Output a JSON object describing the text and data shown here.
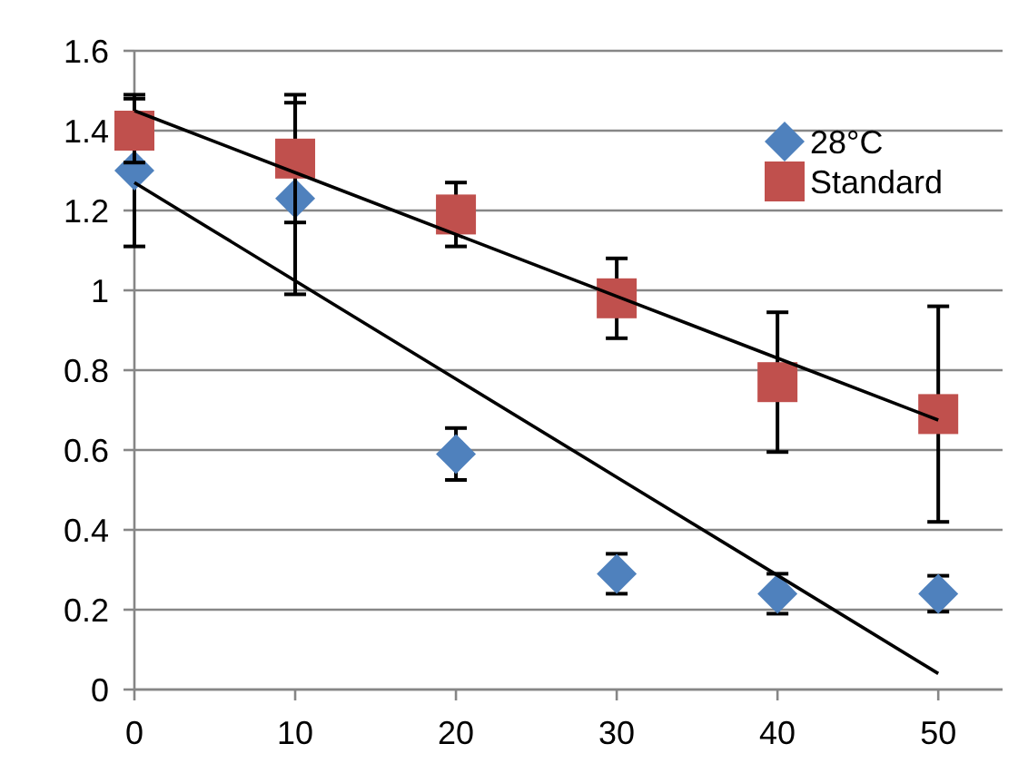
{
  "chart_data": {
    "type": "scatter",
    "x": [
      0,
      10,
      20,
      30,
      40,
      50
    ],
    "xlim": [
      0,
      54
    ],
    "xticks": [
      0,
      10,
      20,
      30,
      40,
      50
    ],
    "ylim": [
      0,
      1.6
    ],
    "yticks": [
      0,
      0.2,
      0.4,
      0.6,
      0.8,
      1,
      1.2,
      1.4,
      1.6
    ],
    "grid": "y",
    "legend": "top right",
    "series": [
      {
        "name": "28°C",
        "color": "#4f81bd",
        "marker": "diamond",
        "values": [
          1.3,
          1.23,
          0.59,
          0.29,
          0.24,
          0.24
        ],
        "errors": [
          0.19,
          0.24,
          0.065,
          0.05,
          0.05,
          0.045
        ]
      },
      {
        "name": "Standard",
        "color": "#c0504d",
        "marker": "square",
        "values": [
          1.4,
          1.33,
          1.19,
          0.98,
          0.77,
          0.69
        ],
        "errors": [
          0.08,
          0.16,
          0.08,
          0.1,
          0.175,
          0.27
        ]
      },
      {
        "type": "line",
        "color": "#000000",
        "marker": "none",
        "values": [
          1.45,
          1.295,
          1.14,
          0.985,
          0.83,
          0.675
        ]
      },
      {
        "type": "line",
        "color": "#000000",
        "marker": "none",
        "values": [
          1.27,
          1.024,
          0.778,
          0.532,
          0.286,
          0.04
        ]
      }
    ]
  }
}
